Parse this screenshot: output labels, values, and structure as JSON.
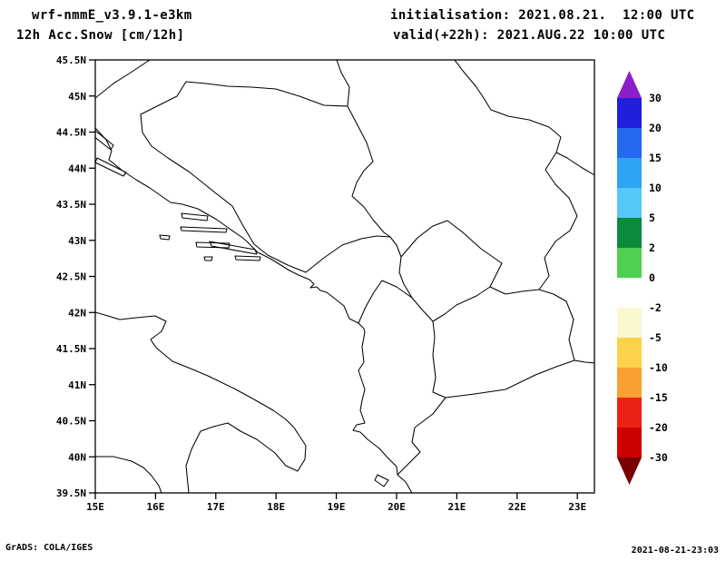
{
  "header": {
    "model": "wrf-nmmE_v3.9.1-e3km",
    "product": "12h Acc.Snow [cm/12h]",
    "initialisation": "initialisation: 2021.08.21.  12:00 UTC",
    "valid": "valid(+22h): 2021.AUG.22 10:00 UTC"
  },
  "footer": {
    "credit": "GrADS: COLA/IGES",
    "timestamp": "2021-08-21-23:03"
  },
  "map": {
    "x_ticks": [
      "15E",
      "16E",
      "17E",
      "18E",
      "19E",
      "20E",
      "21E",
      "22E",
      "23E"
    ],
    "y_ticks": [
      "45.5N",
      "45N",
      "44.5N",
      "44N",
      "43.5N",
      "43N",
      "42.5N",
      "42N",
      "41.5N",
      "41N",
      "40.5N",
      "40N",
      "39.5N"
    ],
    "frame_color": "#000000",
    "coastline_color": "#000000"
  },
  "colorbar": {
    "labels": [
      "30",
      "20",
      "15",
      "10",
      "5",
      "2",
      "0",
      "-2",
      "-5",
      "-10",
      "-15",
      "-20",
      "-30"
    ],
    "arrow_top_color": "#8a1fc8",
    "band_colors": [
      "#2020dc",
      "#2668f0",
      "#2fa4f5",
      "#55c8f8",
      "#0a8c3c",
      "#50d050",
      "#ffffff",
      "#fbf7cf",
      "#fcd24a",
      "#faa032",
      "#ee2214",
      "#cc0000"
    ],
    "arrow_bottom_color": "#780000"
  },
  "chart_data": {
    "type": "heatmap",
    "title": "12h Acc.Snow [cm/12h]",
    "subtitle_left": "wrf-nmmE_v3.9.1-e3km",
    "x_axis_lon_range": [
      15,
      23.3
    ],
    "y_axis_lat_range": [
      39.5,
      45.5
    ],
    "x_tick_values": [
      15,
      16,
      17,
      18,
      19,
      20,
      21,
      22,
      23
    ],
    "y_tick_values": [
      45.5,
      45,
      44.5,
      44,
      43.5,
      43,
      42.5,
      42,
      41.5,
      41,
      40.5,
      40,
      39.5
    ],
    "shading_levels": [
      30,
      20,
      15,
      10,
      5,
      2,
      0,
      -2,
      -5,
      -10,
      -15,
      -20,
      -30
    ],
    "legend_position": "right",
    "grid": false,
    "field": "no shaded contour values visible; accumulated snow is zero over the whole domain (map shows only coastlines and country borders)"
  }
}
